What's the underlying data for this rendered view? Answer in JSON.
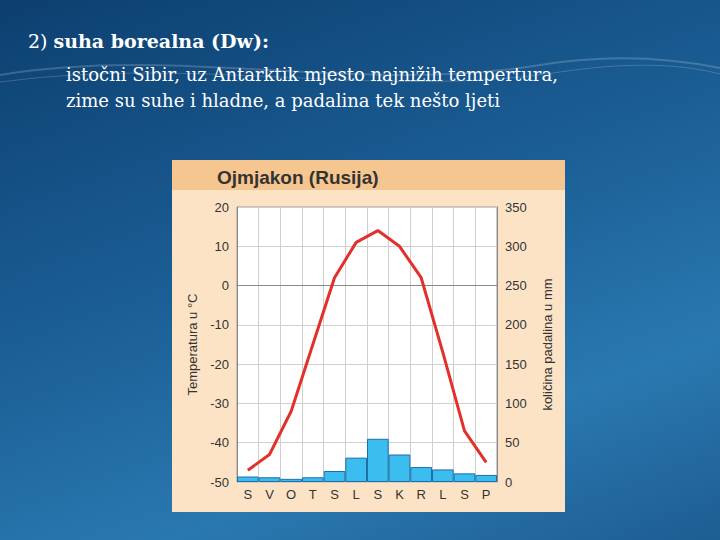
{
  "slide": {
    "number": "2)",
    "heading": "suha borealna (Dw):",
    "lines": [
      "istočni Sibir, uz Antarktik mjesto najnižih tempertura,",
      "zime su suhe i hladne, a padalina tek nešto ljeti"
    ]
  },
  "chart_data": {
    "type": "line",
    "title": "Ojmjakon (Rusija)",
    "categories": [
      "S",
      "V",
      "O",
      "T",
      "S",
      "L",
      "S",
      "K",
      "R",
      "L",
      "S",
      "P"
    ],
    "ylabel": "Temperatura u °C",
    "y2label": "količina padalina u mm",
    "series": [
      {
        "type": "line",
        "color": "#e2302a",
        "values": [
          -47,
          -43,
          -32,
          -15,
          2,
          11,
          14,
          10,
          2,
          -17,
          -37,
          -45
        ]
      },
      {
        "type": "bar",
        "axis": "y2",
        "color": "#3bbdf0",
        "values": [
          7,
          6,
          4,
          6,
          14,
          31,
          55,
          35,
          19,
          16,
          11,
          9
        ]
      }
    ],
    "ylim": [
      -50,
      20
    ],
    "yticks": [
      -50,
      -40,
      -30,
      -20,
      -10,
      0,
      10,
      20
    ],
    "y2lim": [
      0,
      350
    ],
    "y2ticks": [
      0,
      50,
      100,
      150,
      200,
      250,
      300,
      350
    ],
    "grid": true
  }
}
